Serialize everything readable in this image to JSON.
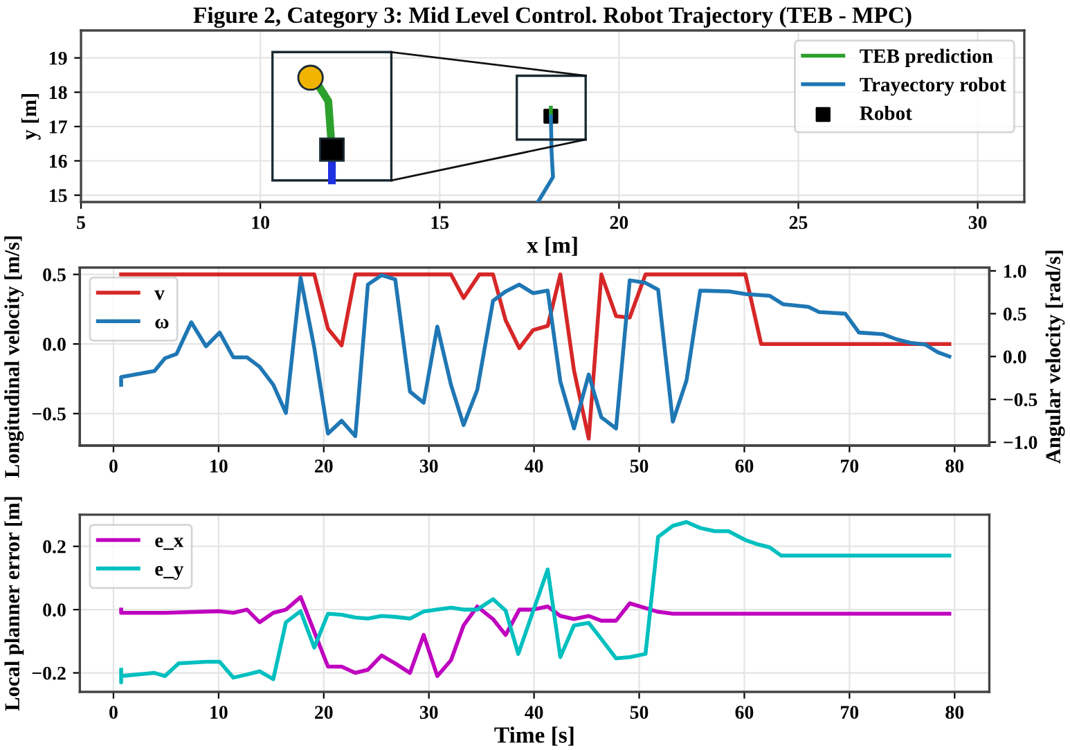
{
  "chart_data": [
    {
      "type": "line",
      "title": "Figure 2, Category 3: Mid Level Control. Robot Trajectory (TEB - MPC)",
      "xlabel": "x [m]",
      "ylabel": "y [m]",
      "xlim": [
        5,
        31.3
      ],
      "ylim": [
        14.8,
        19.8
      ],
      "xticks": [
        5,
        10,
        15,
        20,
        25,
        30
      ],
      "yticks": [
        15,
        16,
        17,
        18,
        19
      ],
      "grid": true,
      "legend": "top right",
      "series": [
        {
          "name": "TEB prediction",
          "color": "#2ca02c",
          "x": [
            18.1,
            18.1
          ],
          "values": [
            17.3,
            17.55
          ]
        },
        {
          "name": "Trayectory robot",
          "color": "#1f77b4",
          "x": [
            17.74,
            18.16,
            18.12,
            18.1
          ],
          "values": [
            14.8,
            15.53,
            16.25,
            17.3
          ]
        },
        {
          "name": "Robot",
          "type": "scatter",
          "marker": "square",
          "color": "#000000",
          "x": [
            18.1
          ],
          "values": [
            17.3
          ]
        }
      ]
    },
    {
      "type": "line",
      "ylabel": "Longitudinal velocity [m/s]",
      "y2label": "Angular velocity [rad/s]",
      "xlim": [
        -3.2,
        83.3
      ],
      "ylim": [
        -0.73,
        0.55
      ],
      "y2lim": [
        -1.04,
        1.04
      ],
      "xticks": [
        0,
        10,
        20,
        30,
        40,
        50,
        60,
        70,
        80
      ],
      "yticks": [
        {
          "value": -0.5,
          "label": "−0.5"
        },
        {
          "value": 0,
          "label": "0.0"
        },
        0.5
      ],
      "y2ticks": [
        {
          "value": -1.0,
          "label": "−1.0"
        },
        {
          "value": -0.5,
          "label": "−0.5"
        },
        {
          "value": 0,
          "label": "0.0"
        },
        0.5,
        {
          "value": 1,
          "label": "1.0"
        }
      ],
      "grid": true,
      "legend": "top left",
      "series": [
        {
          "name": "v",
          "color": "#d62728",
          "x": [
            0.73,
            19.1,
            20.4,
            21.7,
            23.0,
            32.1,
            33.3,
            34.8,
            36.1,
            37.3,
            38.6,
            39.9,
            41.3,
            42.5,
            43.8,
            45.2,
            46.4,
            47.8,
            49.1,
            50.6,
            60.1,
            61.6,
            79.5
          ],
          "values": [
            0.5,
            0.5,
            0.11,
            -0.01,
            0.5,
            0.5,
            0.33,
            0.5,
            0.5,
            0.17,
            -0.03,
            0.1,
            0.13,
            0.5,
            -0.19,
            -0.68,
            0.5,
            0.2,
            0.19,
            0.5,
            0.5,
            0.0,
            0.0
          ]
        },
        {
          "name": "ω",
          "axis": "y2",
          "color": "#1f77b4",
          "x": [
            0.73,
            0.73,
            3.9,
            4.9,
            6.0,
            7.4,
            8.8,
            10.1,
            11.4,
            12.7,
            13.9,
            15.2,
            16.4,
            17.8,
            19.1,
            20.4,
            21.7,
            23.0,
            24.2,
            25.5,
            26.8,
            28.2,
            29.5,
            30.8,
            32.1,
            33.3,
            34.6,
            36.1,
            37.3,
            38.6,
            39.9,
            41.3,
            42.5,
            43.8,
            45.2,
            46.4,
            47.8,
            49.1,
            50.6,
            51.8,
            53.2,
            54.5,
            55.8,
            58.6,
            60.1,
            62.4,
            63.7,
            66.1,
            67.1,
            68.4,
            69.6,
            70.9,
            73.2,
            74.5,
            75.8,
            77.2,
            78.4,
            79.5
          ],
          "values": [
            -0.33,
            -0.24,
            -0.17,
            -0.02,
            0.03,
            0.4,
            0.12,
            0.28,
            -0.01,
            -0.01,
            -0.12,
            -0.33,
            -0.66,
            0.92,
            0.1,
            -0.9,
            -0.75,
            -0.93,
            0.84,
            0.95,
            0.9,
            -0.41,
            -0.54,
            0.35,
            -0.33,
            -0.8,
            -0.39,
            0.65,
            0.76,
            0.84,
            0.74,
            0.77,
            -0.29,
            -0.84,
            -0.21,
            -0.71,
            -0.84,
            0.89,
            0.86,
            0.78,
            -0.76,
            -0.28,
            0.77,
            0.76,
            0.73,
            0.71,
            0.61,
            0.58,
            0.52,
            0.51,
            0.5,
            0.28,
            0.26,
            0.2,
            0.16,
            0.14,
            0.05,
            0.0
          ]
        }
      ]
    },
    {
      "type": "line",
      "xlabel": "Time [s]",
      "ylabel": "Local planner error [m]",
      "xlim": [
        -3.2,
        83.3
      ],
      "ylim": [
        -0.26,
        0.3
      ],
      "xticks": [
        0,
        10,
        20,
        30,
        40,
        50,
        60,
        70,
        80
      ],
      "yticks": [
        {
          "value": -0.2,
          "label": "−0.2"
        },
        {
          "value": 0,
          "label": "0.0"
        },
        0.2
      ],
      "grid": true,
      "legend": "top left",
      "series": [
        {
          "name": "e_x",
          "color": "#bf00bf",
          "x": [
            0.73,
            0.73,
            3.9,
            4.9,
            10.1,
            11.4,
            12.7,
            13.9,
            15.2,
            16.4,
            17.8,
            19.1,
            20.4,
            21.7,
            23.0,
            24.2,
            25.5,
            26.8,
            28.2,
            29.5,
            30.8,
            32.1,
            33.3,
            34.6,
            36.1,
            37.3,
            38.6,
            39.9,
            41.3,
            42.5,
            43.8,
            45.2,
            46.4,
            47.8,
            49.1,
            50.6,
            51.8,
            53.2,
            79.5
          ],
          "values": [
            0.0,
            -0.01,
            -0.01,
            -0.01,
            -0.005,
            -0.01,
            0.0,
            -0.04,
            -0.01,
            0.0,
            0.04,
            -0.07,
            -0.18,
            -0.18,
            -0.2,
            -0.19,
            -0.145,
            -0.17,
            -0.2,
            -0.08,
            -0.21,
            -0.16,
            -0.05,
            0.01,
            -0.03,
            -0.08,
            0.0,
            0.0,
            0.01,
            -0.02,
            -0.03,
            -0.02,
            -0.035,
            -0.035,
            0.02,
            0.005,
            -0.007,
            -0.013,
            -0.013
          ]
        },
        {
          "name": "e_y",
          "color": "#00bfbf",
          "x": [
            0.73,
            0.73,
            0.73,
            3.9,
            4.9,
            6.2,
            8.8,
            10.1,
            11.4,
            12.7,
            13.9,
            15.2,
            16.4,
            17.8,
            19.1,
            20.4,
            21.7,
            23.0,
            24.2,
            25.5,
            26.8,
            28.2,
            29.5,
            30.8,
            32.1,
            33.3,
            34.6,
            36.1,
            37.3,
            38.5,
            39.9,
            41.3,
            42.5,
            43.8,
            45.2,
            46.4,
            47.8,
            49.1,
            50.6,
            51.8,
            53.2,
            54.5,
            55.8,
            57.2,
            58.5,
            60.1,
            61.2,
            62.4,
            63.5,
            79.5
          ],
          "values": [
            -0.19,
            -0.23,
            -0.21,
            -0.2,
            -0.21,
            -0.17,
            -0.165,
            -0.165,
            -0.215,
            -0.205,
            -0.195,
            -0.22,
            -0.04,
            -0.005,
            -0.12,
            -0.013,
            -0.016,
            -0.025,
            -0.028,
            -0.02,
            -0.023,
            -0.028,
            -0.006,
            0.0,
            0.006,
            0.0,
            0.0,
            0.033,
            -0.003,
            -0.14,
            -0.006,
            0.127,
            -0.15,
            -0.05,
            -0.042,
            -0.093,
            -0.154,
            -0.15,
            -0.14,
            0.23,
            0.265,
            0.277,
            0.258,
            0.248,
            0.248,
            0.22,
            0.207,
            0.197,
            0.171,
            0.171
          ]
        }
      ]
    }
  ]
}
